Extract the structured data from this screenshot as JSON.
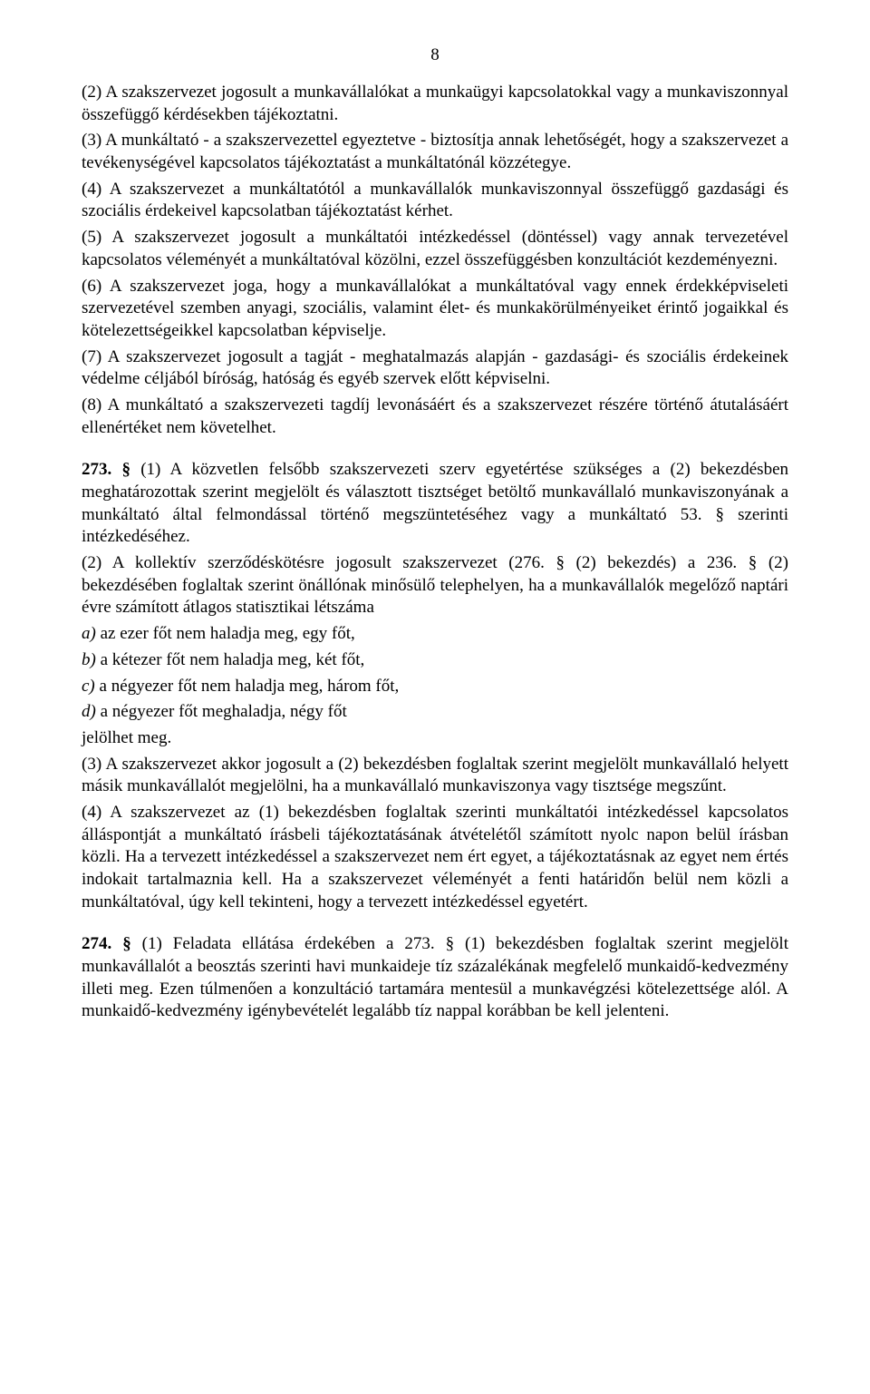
{
  "page_number": "8",
  "paragraphs": [
    {
      "text": "(2) A szakszervezet jogosult a munkavállalókat a munkaügyi kapcsolatokkal vagy a munkaviszonnyal összefüggő kérdésekben tájékoztatni."
    },
    {
      "text": "(3) A munkáltató - a szakszervezettel egyeztetve - biztosítja annak lehetőségét, hogy a szakszervezet a tevékenységével kapcsolatos tájékoztatást a munkáltatónál közzétegye."
    },
    {
      "text": "(4) A szakszervezet a munkáltatótól a munkavállalók munkaviszonnyal összefüggő gazdasági és szociális érdekeivel kapcsolatban tájékoztatást kérhet."
    },
    {
      "text": "(5) A szakszervezet jogosult a munkáltatói intézkedéssel (döntéssel) vagy annak tervezetével kapcsolatos véleményét a munkáltatóval közölni, ezzel összefüggésben konzultációt kezdeményezni."
    },
    {
      "text": "(6) A szakszervezet joga, hogy a munkavállalókat a munkáltatóval vagy ennek érdekképviseleti szervezetével szemben anyagi, szociális, valamint élet- és munkakörülményeiket érintő jogaikkal és kötelezettségeikkel kapcsolatban képviselje."
    },
    {
      "text": "(7) A szakszervezet jogosult a tagját - meghatalmazás alapján - gazdasági- és szociális érdekeinek védelme céljából bíróság, hatóság és egyéb szervek előtt képviselni."
    },
    {
      "text": "(8) A munkáltató a szakszervezeti tagdíj levonásáért és a szakszervezet részére történő átutalásáért ellenértéket nem követelhet."
    }
  ],
  "section273": {
    "lead_bold": "273. §",
    "p1": " (1) A közvetlen felsőbb szakszervezeti szerv egyetértése szükséges a (2) bekezdésben meghatározottak szerint megjelölt és választott tisztséget betöltő munkavállaló munkaviszonyának a munkáltató által felmondással történő megszüntetéséhez vagy a munkáltató 53. § szerinti intézkedéséhez.",
    "p2": "(2) A kollektív szerződéskötésre jogosult szakszervezet (276. § (2) bekezdés) a 236. § (2) bekezdésében foglaltak szerint önállónak minősülő telephelyen, ha a munkavállalók megelőző naptári évre számított átlagos statisztikai létszáma",
    "a_label": "a) ",
    "a_text": "az ezer főt nem haladja meg, egy főt,",
    "b_label": "b) ",
    "b_text": "a kétezer főt nem haladja meg, két főt,",
    "c_label": "c) ",
    "c_text": "a négyezer főt nem haladja meg, három főt,",
    "d_label": "d) ",
    "d_text": "a négyezer főt meghaladja, négy főt",
    "jelolhet": "jelölhet meg.",
    "p3": "(3) A szakszervezet akkor jogosult a (2) bekezdésben foglaltak szerint megjelölt munkavállaló helyett másik munkavállalót megjelölni, ha a munkavállaló munkaviszonya vagy tisztsége megszűnt.",
    "p4": "(4) A szakszervezet az (1) bekezdésben foglaltak szerinti munkáltatói intézkedéssel kapcsolatos álláspontját a munkáltató írásbeli tájékoztatásának átvételétől számított nyolc napon belül írásban közli. Ha a tervezett intézkedéssel a szakszervezet nem ért egyet, a tájékoztatásnak az egyet nem értés indokait tartalmaznia kell. Ha a szakszervezet véleményét a fenti határidőn belül nem közli a munkáltatóval, úgy kell tekinteni, hogy a tervezett intézkedéssel egyetért."
  },
  "section274": {
    "lead_bold": "274. §",
    "p1": " (1) Feladata ellátása érdekében a 273. § (1) bekezdésben foglaltak szerint megjelölt munkavállalót a beosztás szerinti havi munkaideje tíz százalékának megfelelő munkaidő-kedvezmény illeti meg. Ezen túlmenően a konzultáció tartamára mentesül a munkavégzési kötelezettsége alól. A munkaidő-kedvezmény igénybevételét legalább tíz nappal korábban be kell jelenteni."
  }
}
